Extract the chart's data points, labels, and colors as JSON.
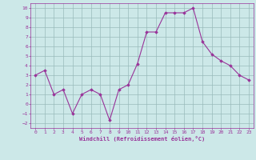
{
  "x": [
    0,
    1,
    2,
    3,
    4,
    5,
    6,
    7,
    8,
    9,
    10,
    11,
    12,
    13,
    14,
    15,
    16,
    17,
    18,
    19,
    20,
    21,
    22,
    23
  ],
  "y": [
    3,
    3.5,
    1,
    1.5,
    -1,
    1,
    1.5,
    1,
    -1.7,
    1.5,
    2,
    4.2,
    7.5,
    7.5,
    9.5,
    9.5,
    9.5,
    10,
    6.5,
    5.2,
    4.5,
    4,
    3,
    2.5
  ],
  "line_color": "#993399",
  "marker": "D",
  "marker_color": "#993399",
  "bg_color": "#cce8e8",
  "grid_color": "#99bbbb",
  "xlabel": "Windchill (Refroidissement éolien,°C)",
  "ylim": [
    -2.5,
    10.5
  ],
  "xlim": [
    -0.5,
    23.5
  ],
  "yticks": [
    -2,
    -1,
    0,
    1,
    2,
    3,
    4,
    5,
    6,
    7,
    8,
    9,
    10
  ],
  "xticks": [
    0,
    1,
    2,
    3,
    4,
    5,
    6,
    7,
    8,
    9,
    10,
    11,
    12,
    13,
    14,
    15,
    16,
    17,
    18,
    19,
    20,
    21,
    22,
    23
  ],
  "tick_color": "#993399",
  "label_color": "#993399",
  "figsize": [
    3.2,
    2.0
  ],
  "dpi": 100
}
